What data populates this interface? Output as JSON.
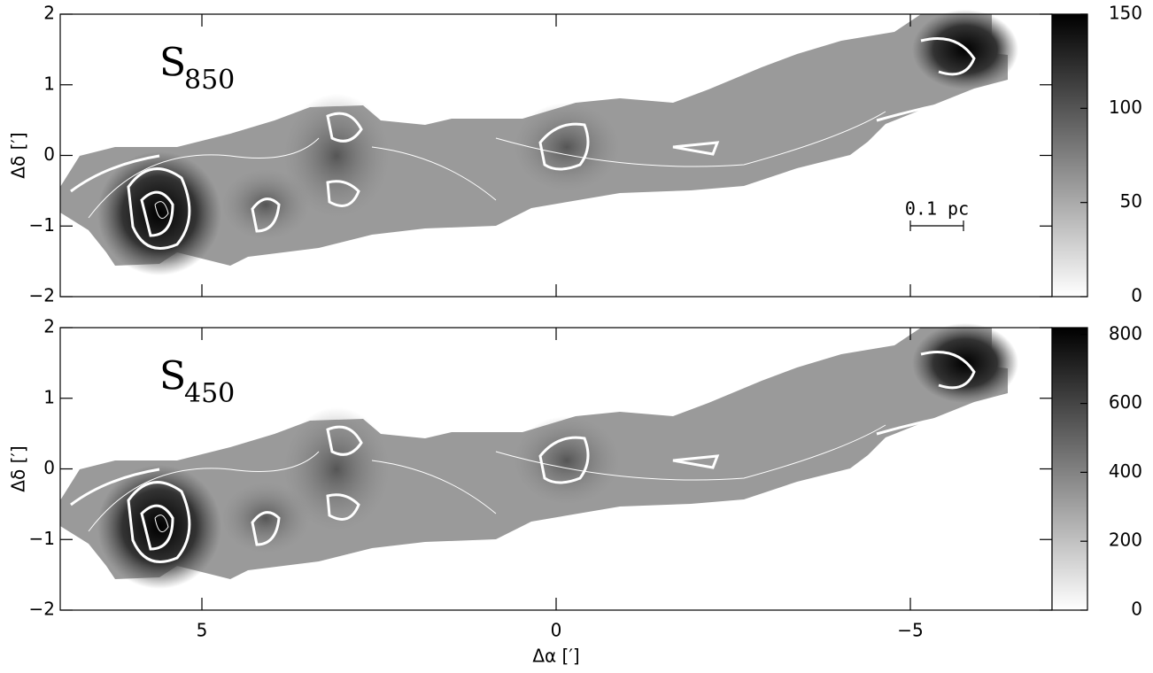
{
  "chart_data": [
    {
      "type": "heatmap",
      "panel_label": {
        "main": "S",
        "sub": "850"
      },
      "ylabel": "Δδ [′]",
      "ylim": [
        -2,
        2
      ],
      "yticks": [
        {
          "value": -2,
          "label": "−2"
        },
        {
          "value": -1,
          "label": "−1"
        },
        0,
        1,
        2
      ],
      "clim": [
        0,
        150
      ],
      "cticks": [
        0,
        50,
        100,
        150
      ],
      "scale_bar": "0.1 pc"
    },
    {
      "type": "heatmap",
      "panel_label": {
        "main": "S",
        "sub": "450"
      },
      "ylabel": "Δδ [′]",
      "xlabel": "Δα [′]",
      "xlim": [
        7,
        -7
      ],
      "xticks": [
        5,
        0,
        {
          "value": -5,
          "label": "−5"
        }
      ],
      "ylim": [
        -2,
        2
      ],
      "yticks": [
        {
          "value": -2,
          "label": "−2"
        },
        {
          "value": -1,
          "label": "−1"
        },
        0,
        1,
        2
      ],
      "clim": [
        0,
        820
      ],
      "cticks": [
        0,
        200,
        400,
        600,
        800
      ]
    }
  ]
}
